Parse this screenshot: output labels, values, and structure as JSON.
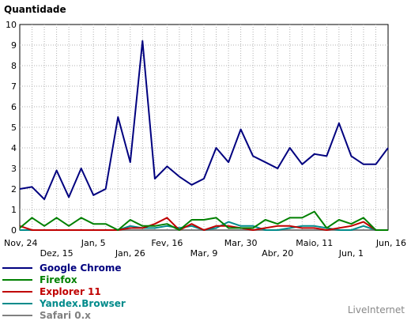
{
  "chart_data": {
    "type": "line",
    "ylabel": "Quantidade",
    "ylim": [
      0,
      10
    ],
    "yticks": [
      0,
      1,
      2,
      3,
      4,
      5,
      6,
      7,
      8,
      9,
      10
    ],
    "grid": true,
    "x_ticks_row1": [
      "Nov, 24",
      "Jan, 5",
      "Fev, 16",
      "Mar, 30",
      "Maio, 11",
      "Jun, 16"
    ],
    "x_ticks_row2": [
      "Dez, 15",
      "Jan, 26",
      "Mar, 9",
      "Abr, 20",
      "Jun, 1"
    ],
    "series": [
      {
        "name": "Google Chrome",
        "color": "#00007f",
        "values": [
          2,
          2.1,
          1.5,
          2.9,
          1.6,
          3.0,
          1.7,
          2.0,
          5.5,
          3.3,
          9.2,
          2.5,
          3.1,
          2.6,
          2.2,
          2.5,
          4.0,
          3.3,
          4.9,
          3.6,
          3.3,
          3.0,
          4.0,
          3.2,
          3.7,
          3.6,
          5.2,
          3.6,
          3.2,
          3.2,
          4.0
        ]
      },
      {
        "name": "Firefox",
        "color": "#008000",
        "values": [
          0.1,
          0.6,
          0.2,
          0.6,
          0.2,
          0.6,
          0.3,
          0.3,
          0.0,
          0.5,
          0.2,
          0.2,
          0.3,
          0.0,
          0.5,
          0.5,
          0.6,
          0.1,
          0.1,
          0.1,
          0.5,
          0.3,
          0.6,
          0.6,
          0.9,
          0.1,
          0.5,
          0.3,
          0.6,
          0.0,
          0.0
        ]
      },
      {
        "name": "Explorer 11",
        "color": "#c00000",
        "values": [
          0.2,
          0.0,
          0.0,
          0.0,
          0.0,
          0.0,
          0.0,
          0.0,
          0.0,
          0.1,
          0.1,
          0.3,
          0.6,
          0.0,
          0.3,
          0.0,
          0.2,
          0.2,
          0.1,
          0.0,
          0.1,
          0.2,
          0.2,
          0.1,
          0.1,
          0.0,
          0.1,
          0.2,
          0.4,
          0.0,
          0.0
        ]
      },
      {
        "name": "Yandex.Browser",
        "color": "#008b8b",
        "values": [
          0.0,
          0.0,
          0.0,
          0.0,
          0.0,
          0.0,
          0.0,
          0.0,
          0.0,
          0.2,
          0.1,
          0.1,
          0.2,
          0.1,
          0.2,
          0.0,
          0.1,
          0.4,
          0.2,
          0.2,
          0.0,
          0.0,
          0.1,
          0.2,
          0.2,
          0.1,
          0.0,
          0.0,
          0.2,
          0.0,
          0.0
        ]
      },
      {
        "name": "Safari 0.x",
        "color": "#808080",
        "values": [
          0.0,
          0.0,
          0.0,
          0.0,
          0.0,
          0.0,
          0.0,
          0.0,
          0.0,
          0.0,
          0.0,
          0.0,
          0.0,
          0.0,
          0.0,
          0.0,
          0.0,
          0.0,
          0.0,
          0.0,
          0.0,
          0.0,
          0.0,
          0.0,
          0.0,
          0.0,
          0.0,
          0.0,
          0.0,
          0.0,
          0.0
        ]
      }
    ]
  },
  "credit": "LiveInternet"
}
